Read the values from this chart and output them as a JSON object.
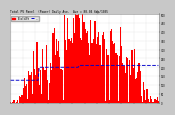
{
  "title": "Total PV Panel  (Power) Daily Ave.  Ave = 80.04 kWp/1035",
  "legend_label1": "Total kWh",
  "legend_label2": "---",
  "background_color": "#c8c8c8",
  "plot_bg_color": "#ffffff",
  "bar_color": "#ff0000",
  "avg_line_color": "#0000cc",
  "grid_color": "#aaaaaa",
  "text_color": "#000000",
  "title_color": "#000000",
  "n_bars": 130,
  "y_max": 500,
  "y_tick_vals": [
    0,
    50,
    100,
    150,
    200,
    250,
    300,
    350,
    400,
    450,
    500
  ],
  "y_tick_labels": [
    "0",
    "50",
    "100",
    "150",
    "200",
    "250",
    "300",
    "350",
    "400",
    "450",
    "500"
  ],
  "avg_line_level": 0.42
}
